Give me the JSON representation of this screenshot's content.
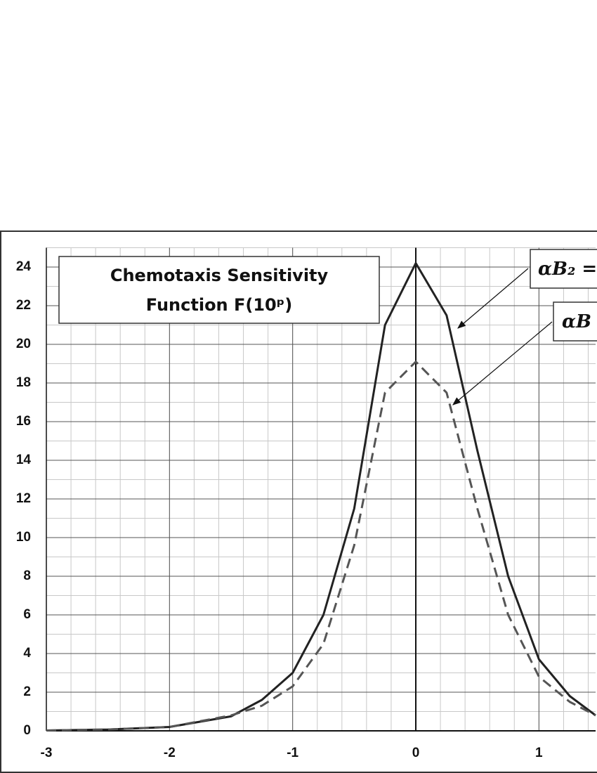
{
  "chart_data": {
    "type": "line",
    "title": [
      "Chemotaxis Sensitivity",
      "Function F(10ᵖ)"
    ],
    "annotations": [
      "αB₂ =",
      "αB"
    ],
    "x": [
      -3,
      -2.5,
      -2,
      -1.5,
      -1.25,
      -1,
      -0.75,
      -0.5,
      -0.25,
      0,
      0.25,
      0.5,
      0.75,
      1,
      1.25,
      1.46
    ],
    "series": [
      {
        "color": "#222222",
        "dash": false,
        "values": [
          0.02,
          0.07,
          0.2,
          0.75,
          1.6,
          3.0,
          6.0,
          11.5,
          21,
          24.2,
          21.5,
          14.5,
          8,
          3.7,
          1.8,
          0.8
        ]
      },
      {
        "color": "#555555",
        "dash": true,
        "values": [
          0.02,
          0.07,
          0.2,
          0.8,
          1.3,
          2.3,
          4.5,
          9.6,
          17.5,
          19.1,
          17.5,
          11.5,
          6,
          2.8,
          1.5,
          0.8
        ]
      }
    ],
    "xlim": [
      -3,
      1.46
    ],
    "xticks": [
      -3,
      -2,
      -1,
      0,
      1
    ],
    "ylim": [
      0,
      25
    ],
    "yticks": [
      0,
      2,
      4,
      6,
      8,
      10,
      12,
      14,
      16,
      18,
      20,
      22,
      24
    ],
    "grid": true
  }
}
